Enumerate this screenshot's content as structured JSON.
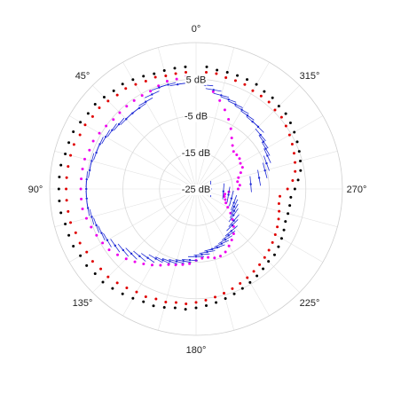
{
  "chart_data": {
    "type": "polar-scatter",
    "theta_direction": "counterclockwise",
    "theta_zero": "top",
    "theta_ticks": [
      {
        "angle": 0,
        "label": "0°"
      },
      {
        "angle": 45,
        "label": "45°"
      },
      {
        "angle": 90,
        "label": "90°"
      },
      {
        "angle": 135,
        "label": "135°"
      },
      {
        "angle": 180,
        "label": "180°"
      },
      {
        "angle": 225,
        "label": "225°"
      },
      {
        "angle": 270,
        "label": "270°"
      },
      {
        "angle": 315,
        "label": "315°"
      }
    ],
    "r_lim": [
      -25,
      15
    ],
    "r_ticks": [
      {
        "value": -25,
        "label": "-25 dB"
      },
      {
        "value": -15,
        "label": "-15 dB"
      },
      {
        "value": -5,
        "label": "-5 dB"
      },
      {
        "value": 5,
        "label": "5 dB"
      }
    ],
    "r_label_angle": 0,
    "colors": {
      "black": "#000000",
      "red": "#e00000",
      "magenta": "#ee00ee",
      "blue": "#1f2bd6"
    },
    "series": [
      {
        "color": "black",
        "points": [
          [
            5,
            8.5
          ],
          [
            10,
            8.5
          ],
          [
            15,
            8.5
          ],
          [
            20,
            8.5
          ],
          [
            25,
            9
          ],
          [
            30,
            9.5
          ],
          [
            35,
            10
          ],
          [
            40,
            10
          ],
          [
            45,
            10.5
          ],
          [
            50,
            11
          ],
          [
            55,
            11
          ],
          [
            60,
            11.5
          ],
          [
            65,
            12
          ],
          [
            70,
            12
          ],
          [
            75,
            12
          ],
          [
            80,
            12.5
          ],
          [
            85,
            12.5
          ],
          [
            90,
            12.5
          ],
          [
            95,
            12.5
          ],
          [
            100,
            12.5
          ],
          [
            105,
            12
          ],
          [
            110,
            12
          ],
          [
            115,
            12
          ],
          [
            120,
            11.5
          ],
          [
            125,
            11.5
          ],
          [
            130,
            11
          ],
          [
            135,
            11
          ],
          [
            140,
            10.5
          ],
          [
            145,
            10
          ],
          [
            150,
            9.5
          ],
          [
            155,
            9
          ],
          [
            160,
            9
          ],
          [
            165,
            8.5
          ],
          [
            170,
            8
          ],
          [
            175,
            8
          ],
          [
            180,
            7.5
          ],
          [
            185,
            7
          ],
          [
            190,
            6.5
          ],
          [
            195,
            6
          ],
          [
            200,
            5.5
          ],
          [
            205,
            5
          ],
          [
            210,
            4.5
          ],
          [
            215,
            4
          ],
          [
            220,
            3.5
          ],
          [
            225,
            3
          ],
          [
            230,
            3
          ],
          [
            235,
            2.5
          ],
          [
            240,
            2
          ],
          [
            245,
            1.5
          ],
          [
            250,
            1
          ],
          [
            255,
            1
          ],
          [
            260,
            1
          ],
          [
            265,
            1
          ],
          [
            270,
            2
          ],
          [
            275,
            3
          ],
          [
            280,
            4
          ],
          [
            285,
            4.5
          ],
          [
            290,
            5
          ],
          [
            295,
            5.5
          ],
          [
            300,
            6
          ],
          [
            305,
            6.5
          ],
          [
            310,
            7
          ],
          [
            315,
            7
          ],
          [
            320,
            7.5
          ],
          [
            325,
            7.5
          ],
          [
            330,
            8
          ],
          [
            335,
            8
          ],
          [
            340,
            8
          ],
          [
            345,
            8
          ],
          [
            350,
            8
          ],
          [
            355,
            8.5
          ]
        ]
      },
      {
        "color": "red",
        "points": [
          [
            5,
            7
          ],
          [
            10,
            7
          ],
          [
            15,
            7
          ],
          [
            20,
            7.5
          ],
          [
            25,
            7.5
          ],
          [
            30,
            8
          ],
          [
            35,
            8.5
          ],
          [
            40,
            8.5
          ],
          [
            45,
            9
          ],
          [
            50,
            9.5
          ],
          [
            55,
            9.5
          ],
          [
            60,
            10
          ],
          [
            65,
            10
          ],
          [
            70,
            10.5
          ],
          [
            75,
            10.5
          ],
          [
            80,
            10.5
          ],
          [
            85,
            10.5
          ],
          [
            90,
            10.5
          ],
          [
            95,
            10.5
          ],
          [
            100,
            10.5
          ],
          [
            105,
            10.5
          ],
          [
            110,
            10
          ],
          [
            115,
            10
          ],
          [
            120,
            9.5
          ],
          [
            125,
            9.5
          ],
          [
            130,
            9
          ],
          [
            135,
            9
          ],
          [
            140,
            8.5
          ],
          [
            145,
            8
          ],
          [
            150,
            7.5
          ],
          [
            155,
            7.5
          ],
          [
            160,
            7
          ],
          [
            165,
            7
          ],
          [
            170,
            6.5
          ],
          [
            175,
            6.5
          ],
          [
            180,
            6
          ],
          [
            185,
            5.5
          ],
          [
            190,
            5
          ],
          [
            195,
            4.5
          ],
          [
            200,
            4
          ],
          [
            205,
            3.5
          ],
          [
            210,
            3
          ],
          [
            215,
            2.5
          ],
          [
            220,
            2
          ],
          [
            225,
            1.5
          ],
          [
            230,
            1
          ],
          [
            235,
            0.5
          ],
          [
            240,
            0
          ],
          [
            245,
            -0.5
          ],
          [
            250,
            -1
          ],
          [
            255,
            -1.5
          ],
          [
            260,
            -2
          ],
          [
            265,
            -2
          ],
          [
            270,
            0
          ],
          [
            275,
            1.5
          ],
          [
            280,
            2.5
          ],
          [
            285,
            3
          ],
          [
            290,
            3.5
          ],
          [
            295,
            4
          ],
          [
            300,
            4.5
          ],
          [
            305,
            5
          ],
          [
            310,
            5.5
          ],
          [
            315,
            5.5
          ],
          [
            320,
            6
          ],
          [
            325,
            6
          ],
          [
            330,
            6
          ],
          [
            335,
            6.5
          ],
          [
            340,
            6.5
          ],
          [
            345,
            6.5
          ],
          [
            350,
            7
          ],
          [
            355,
            7
          ]
        ]
      },
      {
        "color": "magenta",
        "points": [
          [
            5,
            6
          ],
          [
            10,
            5.5
          ],
          [
            15,
            5.5
          ],
          [
            20,
            5
          ],
          [
            25,
            4.5
          ],
          [
            30,
            4.5
          ],
          [
            35,
            4.5
          ],
          [
            40,
            4.5
          ],
          [
            45,
            4.5
          ],
          [
            50,
            4.5
          ],
          [
            55,
            5
          ],
          [
            60,
            5.5
          ],
          [
            65,
            6
          ],
          [
            70,
            6
          ],
          [
            75,
            6.5
          ],
          [
            80,
            6.5
          ],
          [
            85,
            6.5
          ],
          [
            90,
            6.5
          ],
          [
            95,
            6.5
          ],
          [
            100,
            6.5
          ],
          [
            105,
            6
          ],
          [
            110,
            5.5
          ],
          [
            115,
            5
          ],
          [
            120,
            4.5
          ],
          [
            125,
            4
          ],
          [
            130,
            3
          ],
          [
            135,
            2
          ],
          [
            140,
            1
          ],
          [
            145,
            0
          ],
          [
            150,
            -1
          ],
          [
            155,
            -2
          ],
          [
            160,
            -3
          ],
          [
            165,
            -3.5
          ],
          [
            170,
            -4
          ],
          [
            175,
            -4.5
          ],
          [
            180,
            -5.5
          ],
          [
            185,
            -6
          ],
          [
            190,
            -6
          ],
          [
            195,
            -5.5
          ],
          [
            200,
            -5.5
          ],
          [
            205,
            -6
          ],
          [
            210,
            -7
          ],
          [
            215,
            -8
          ],
          [
            220,
            -9
          ],
          [
            225,
            -10.5
          ],
          [
            230,
            -12
          ],
          [
            235,
            -13.5
          ],
          [
            240,
            -15
          ],
          [
            245,
            -16
          ],
          [
            250,
            -16.5
          ],
          [
            255,
            -17
          ],
          [
            260,
            -17
          ],
          [
            265,
            -16
          ],
          [
            270,
            -13.5
          ],
          [
            275,
            -13
          ],
          [
            280,
            -13.5
          ],
          [
            285,
            -13
          ],
          [
            290,
            -12
          ],
          [
            295,
            -11
          ],
          [
            300,
            -11
          ],
          [
            305,
            -10.5
          ],
          [
            310,
            -10.5
          ],
          [
            315,
            -10.5
          ],
          [
            320,
            -9.5
          ],
          [
            325,
            -8
          ],
          [
            330,
            -6
          ],
          [
            335,
            -4
          ],
          [
            340,
            -2
          ],
          [
            345,
            0
          ],
          [
            350,
            2
          ],
          [
            355,
            4
          ]
        ]
      },
      {
        "color": "blue",
        "style": "stem",
        "points": [
          [
            5,
            4
          ],
          [
            10,
            4
          ],
          [
            15,
            4.5
          ],
          [
            20,
            4.5
          ],
          [
            25,
            3.5
          ],
          [
            30,
            2.5
          ],
          [
            35,
            2
          ],
          [
            40,
            2
          ],
          [
            45,
            2
          ],
          [
            50,
            2.5
          ],
          [
            55,
            3
          ],
          [
            60,
            3.5
          ],
          [
            65,
            4
          ],
          [
            70,
            4
          ],
          [
            75,
            4.5
          ],
          [
            80,
            4.5
          ],
          [
            85,
            5
          ],
          [
            90,
            5
          ],
          [
            95,
            5
          ],
          [
            100,
            5
          ],
          [
            105,
            4.5
          ],
          [
            110,
            4
          ],
          [
            115,
            3.5
          ],
          [
            120,
            3
          ],
          [
            125,
            2
          ],
          [
            130,
            1
          ],
          [
            135,
            0
          ],
          [
            140,
            -1
          ],
          [
            145,
            -2
          ],
          [
            150,
            -3
          ],
          [
            155,
            -3.5
          ],
          [
            160,
            -4
          ],
          [
            165,
            -4.5
          ],
          [
            170,
            -5
          ],
          [
            175,
            -5.5
          ],
          [
            180,
            -6.5
          ],
          [
            185,
            -7
          ],
          [
            190,
            -7.5
          ],
          [
            195,
            -8
          ],
          [
            200,
            -8
          ],
          [
            205,
            -8.5
          ],
          [
            210,
            -9
          ],
          [
            215,
            -9.5
          ],
          [
            220,
            -10
          ],
          [
            225,
            -11
          ],
          [
            230,
            -11.5
          ],
          [
            235,
            -12.5
          ],
          [
            240,
            -13
          ],
          [
            245,
            -13.5
          ],
          [
            250,
            -14
          ],
          [
            255,
            -15
          ],
          [
            260,
            -16
          ],
          [
            265,
            -17.5
          ],
          [
            270,
            -21
          ],
          [
            275,
            -10
          ],
          [
            280,
            -7.5
          ],
          [
            285,
            -5.5
          ],
          [
            290,
            -4.5
          ],
          [
            295,
            -3.5
          ],
          [
            300,
            -3
          ],
          [
            305,
            -2.5
          ],
          [
            310,
            -2
          ],
          [
            315,
            -1
          ],
          [
            320,
            -1
          ],
          [
            325,
            -0.5
          ],
          [
            330,
            0
          ],
          [
            335,
            0.5
          ],
          [
            340,
            1
          ],
          [
            345,
            1.5
          ],
          [
            350,
            2.5
          ],
          [
            355,
            3.5
          ]
        ]
      }
    ]
  }
}
